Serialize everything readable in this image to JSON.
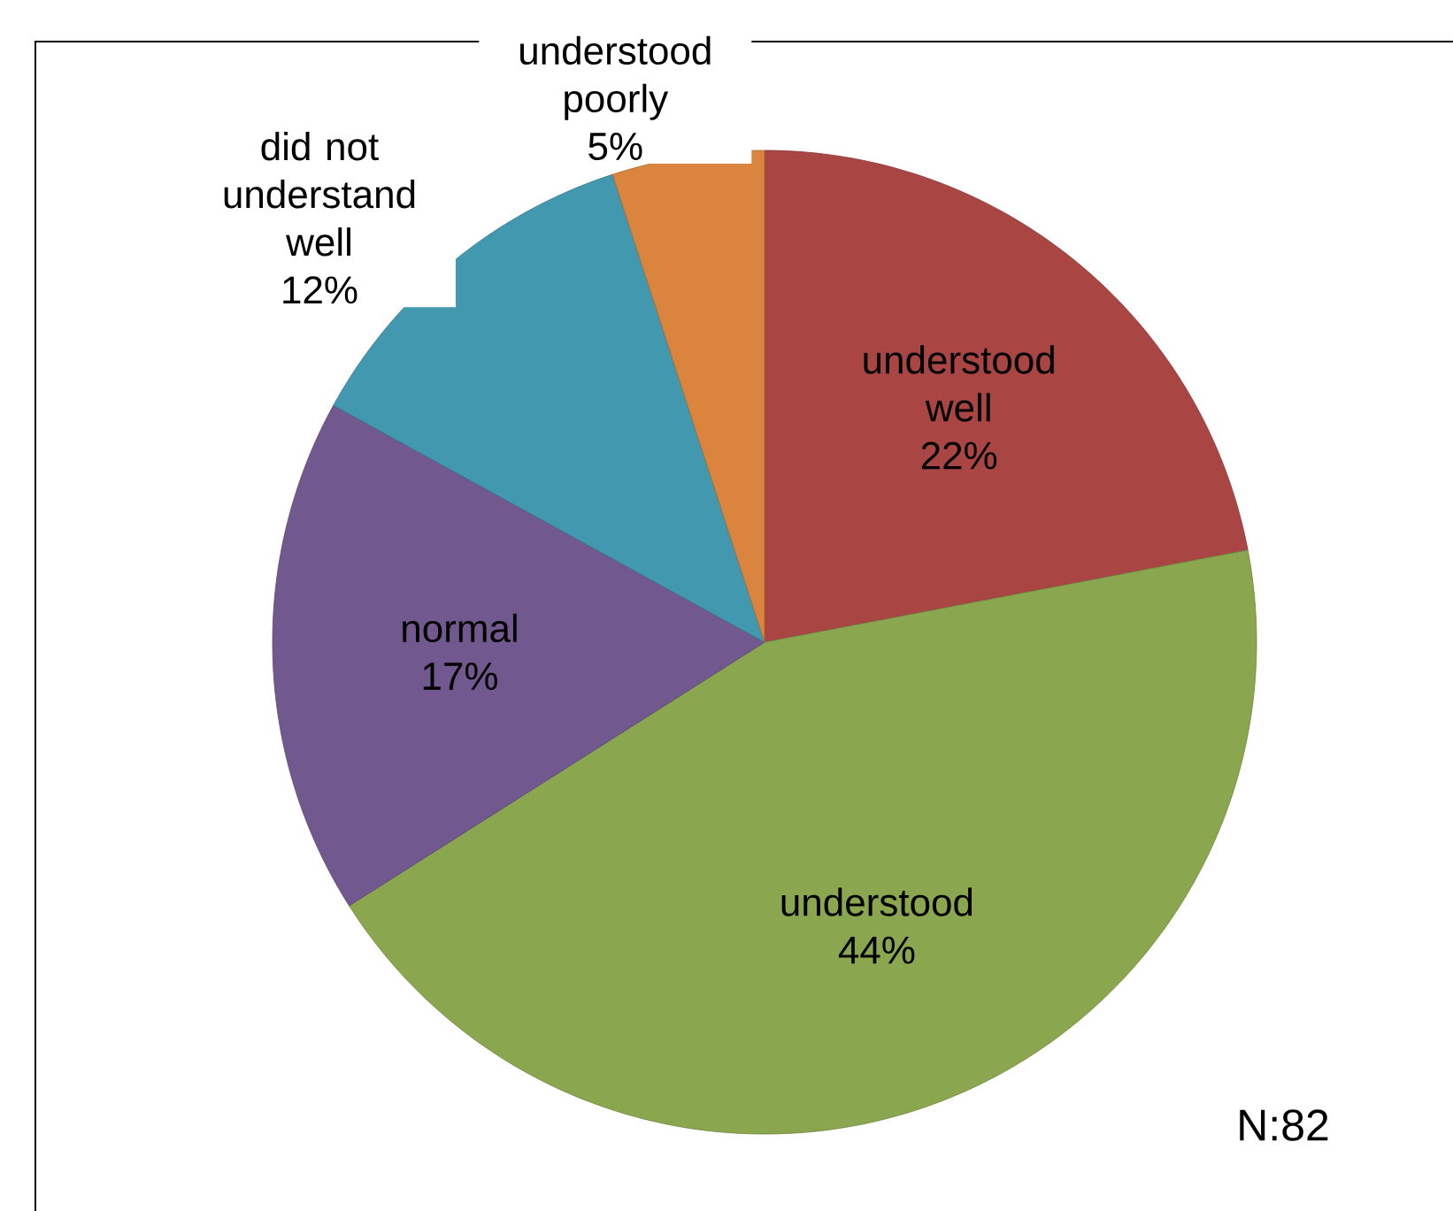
{
  "chart_data": {
    "type": "pie",
    "categories": [
      "understood well",
      "understood",
      "normal",
      "did not understand well",
      "understood poorly"
    ],
    "values": [
      22,
      44,
      17,
      12,
      5
    ],
    "value_labels": [
      "22%",
      "44%",
      "17%",
      "12%",
      "5%"
    ],
    "colors": [
      "#a94643",
      "#8aa64e",
      "#71588f",
      "#4198af",
      "#db843d"
    ],
    "annotations": [
      "N:82"
    ]
  }
}
